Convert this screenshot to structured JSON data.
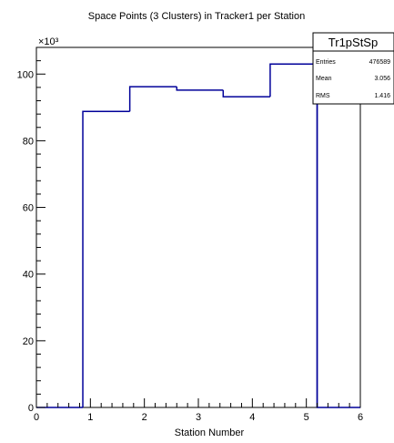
{
  "chart_data": {
    "type": "bar",
    "title": "Space Points (3 Clusters) in Tracker1 per Station",
    "xlabel": "Station Number",
    "ylabel": "",
    "y_multiplier": "×10³",
    "xlim": [
      0,
      6
    ],
    "ylim": [
      0,
      108
    ],
    "x_ticks": [
      "0",
      "1",
      "2",
      "3",
      "4",
      "5",
      "6"
    ],
    "y_ticks": [
      "0",
      "20",
      "40",
      "60",
      "80",
      "100"
    ],
    "grid": false,
    "bins": [
      {
        "x0": 0.0,
        "x1": 0.86,
        "value": 0
      },
      {
        "x0": 0.86,
        "x1": 1.73,
        "value": 88.8
      },
      {
        "x0": 1.73,
        "x1": 2.6,
        "value": 96.2
      },
      {
        "x0": 2.6,
        "x1": 3.46,
        "value": 95.2
      },
      {
        "x0": 3.46,
        "x1": 4.33,
        "value": 93.2
      },
      {
        "x0": 4.33,
        "x1": 5.2,
        "value": 103.0
      },
      {
        "x0": 5.2,
        "x1": 6.0,
        "value": 0
      }
    ],
    "line_color": "#000099"
  },
  "stats_box": {
    "name": "Tr1pStSp",
    "rows": [
      {
        "label": "Entries",
        "value": "476589"
      },
      {
        "label": "Mean",
        "value": "3.056"
      },
      {
        "label": "RMS",
        "value": "1.416"
      }
    ]
  }
}
